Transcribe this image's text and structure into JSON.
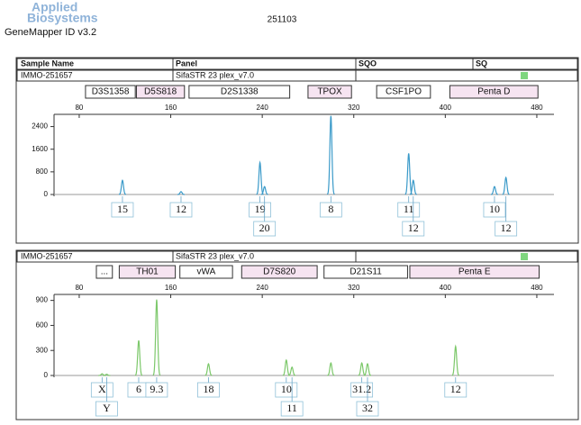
{
  "header": {
    "brand": [
      "Applied",
      "Biosystems"
    ],
    "run": "251103",
    "software": "GeneMapper ID v3.2"
  },
  "columns": [
    "Sample Name",
    "Panel",
    "SQO",
    "SQ"
  ],
  "chart_data": [
    {
      "type": "line",
      "sample": "IMMO-251657",
      "panel": "SifaSTR 23 plex_v7.0",
      "color": "#3a9ac9",
      "markers": [
        {
          "name": "D3S1358",
          "range": [
            85.5,
            129
          ]
        },
        {
          "name": "D5S818",
          "range": [
            130,
            172
          ]
        },
        {
          "name": "D2S1338",
          "range": [
            176,
            264
          ]
        },
        {
          "name": "TPOX",
          "range": [
            280,
            318
          ]
        },
        {
          "name": "CSF1PO",
          "range": [
            340,
            387
          ]
        },
        {
          "name": "Penta D",
          "range": [
            404,
            481
          ]
        }
      ],
      "xlim": [
        58,
        495
      ],
      "xticks": [
        80,
        160,
        240,
        320,
        400,
        480
      ],
      "ylim": [
        0,
        2800
      ],
      "yticks": [
        0,
        800,
        1600,
        2400
      ],
      "peaks": {
        "x": [
          117.8,
          169,
          238,
          242,
          300,
          368,
          372,
          443,
          453
        ],
        "values": [
          500,
          100,
          1130,
          280,
          2780,
          1450,
          500,
          280,
          600
        ]
      },
      "alleles": [
        {
          "x": 117.8,
          "label": "15"
        },
        {
          "x": 169,
          "label": "12"
        },
        {
          "x": 238,
          "label": "19"
        },
        {
          "x": 242,
          "label": "20"
        },
        {
          "x": 300,
          "label": "8"
        },
        {
          "x": 368,
          "label": "11"
        },
        {
          "x": 372,
          "label": "12"
        },
        {
          "x": 443,
          "label": "10"
        },
        {
          "x": 453,
          "label": "12"
        }
      ]
    },
    {
      "type": "line",
      "sample": "IMMO-251657",
      "panel": "SifaSTR 23 plex_v7.0",
      "color": "#7cc86a",
      "markers": [
        {
          "name": "...",
          "range": [
            95,
            109
          ]
        },
        {
          "name": "TH01",
          "range": [
            115,
            164
          ]
        },
        {
          "name": "vWA",
          "range": [
            168,
            214
          ]
        },
        {
          "name": "D7S820",
          "range": [
            222,
            288
          ]
        },
        {
          "name": "D21S11",
          "range": [
            294,
            367
          ]
        },
        {
          "name": "Penta E",
          "range": [
            369,
            482
          ]
        }
      ],
      "xlim": [
        58,
        495
      ],
      "xticks": [
        80,
        160,
        240,
        320,
        400,
        480
      ],
      "ylim": [
        0,
        950
      ],
      "yticks": [
        0,
        300,
        600,
        900
      ],
      "peaks": {
        "x": [
          100,
          104,
          132,
          147.7,
          193,
          261,
          266,
          300,
          327,
          332,
          409
        ],
        "values": [
          20,
          15,
          420,
          910,
          140,
          185,
          100,
          150,
          150,
          140,
          350
        ]
      },
      "alleles": [
        {
          "x": 100,
          "label": "X"
        },
        {
          "x": 104,
          "label": "Y"
        },
        {
          "x": 132,
          "label": "6"
        },
        {
          "x": 147.7,
          "label": "9.3"
        },
        {
          "x": 193,
          "label": "18"
        },
        {
          "x": 261,
          "label": "10"
        },
        {
          "x": 266,
          "label": "11"
        },
        {
          "x": 327,
          "label": "31.2"
        },
        {
          "x": 332,
          "label": "32"
        },
        {
          "x": 409,
          "label": "12"
        }
      ]
    }
  ]
}
